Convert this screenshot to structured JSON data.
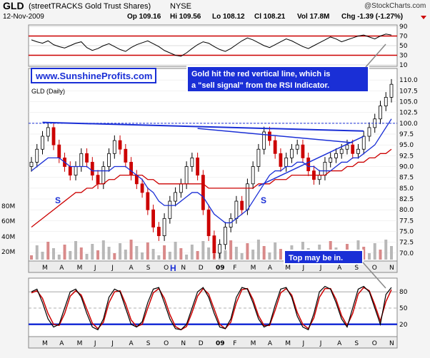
{
  "header": {
    "symbol": "GLD",
    "name": "(streetTRACKS Gold Trust Shares)",
    "exchange": "NYSE",
    "watermark": "@StockCharts.com",
    "date": "12-Nov-2009",
    "op": "Op 109.16",
    "hi": "Hi 109.56",
    "lo": "Lo 108.12",
    "cl": "Cl 108.21",
    "vol": "Vol 17.8M",
    "chg": "Chg -1.39 (-1.27%)"
  },
  "annotations": {
    "site": "www.SunshineProfits.com",
    "rsi_note_line1": "Gold hit the red vertical line, which is",
    "rsi_note_line2": "a \"sell signal\" from the RSI Indicator.",
    "top_note": "Top may be in.",
    "s_left": "S",
    "s_right": "S",
    "h_label": "H"
  },
  "colors": {
    "bg": "#f4f4f4",
    "panel": "#ffffff",
    "accent_blue": "#1a2fd6",
    "red": "#cc0000",
    "note_border": "#1a2fd6"
  },
  "chart_data": [
    {
      "type": "line",
      "panel": "RSI",
      "ylim": [
        10,
        90
      ],
      "yticks": [
        10,
        30,
        50,
        70,
        90
      ],
      "reference_lines": [
        70,
        30
      ],
      "values": [
        62,
        58,
        55,
        60,
        52,
        48,
        45,
        50,
        55,
        58,
        46,
        40,
        44,
        50,
        54,
        48,
        42,
        38,
        46,
        52,
        56,
        60,
        54,
        48,
        40,
        35,
        30,
        28,
        35,
        44,
        52,
        58,
        55,
        48,
        42,
        38,
        44,
        52,
        60,
        66,
        62,
        56,
        50,
        46,
        52,
        58,
        64,
        60,
        54,
        48,
        44,
        50,
        56,
        62,
        68,
        64,
        58,
        62,
        66,
        70,
        72,
        68,
        64,
        70,
        74,
        72
      ]
    },
    {
      "type": "candlestick",
      "panel": "GLD (Daily)",
      "title": "GLD (Daily)",
      "ylim": [
        68.5,
        112
      ],
      "yticks": [
        70.0,
        72.5,
        75.0,
        77.5,
        80.0,
        82.5,
        85.0,
        87.5,
        90.0,
        92.5,
        95.0,
        97.5,
        100.0,
        102.5,
        105.0,
        107.5,
        110.0
      ],
      "xticks": [
        "M",
        "A",
        "M",
        "J",
        "J",
        "A",
        "S",
        "O",
        "N",
        "D",
        "09",
        "F",
        "M",
        "A",
        "M",
        "J",
        "J",
        "A",
        "S",
        "O",
        "N"
      ],
      "close": [
        91,
        94,
        97,
        99,
        95,
        92,
        90,
        88,
        90,
        93,
        91,
        88,
        86,
        90,
        93,
        96,
        94,
        91,
        88,
        86,
        84,
        80,
        76,
        74,
        78,
        82,
        84,
        86,
        90,
        92,
        88,
        80,
        74,
        70,
        72,
        76,
        78,
        82,
        80,
        86,
        90,
        94,
        98,
        96,
        93,
        90,
        92,
        94,
        95,
        92,
        89,
        87,
        88,
        91,
        92,
        93,
        94,
        95,
        93,
        94,
        97,
        99,
        101,
        104,
        106,
        109
      ],
      "ma_blue": [
        89,
        90,
        91,
        92,
        92,
        92,
        91,
        90,
        90,
        90,
        90,
        89,
        89,
        89,
        89,
        90,
        90,
        90,
        89,
        88,
        87,
        85,
        84,
        82,
        81,
        81,
        81,
        82,
        83,
        84,
        84,
        83,
        81,
        79,
        78,
        77,
        77,
        78,
        79,
        80,
        82,
        84,
        86,
        88,
        89,
        89,
        90,
        90,
        91,
        91,
        90,
        90,
        89,
        89,
        89,
        90,
        91,
        91,
        92,
        92,
        93,
        94,
        95,
        97,
        99,
        101
      ],
      "ma_red": [
        76,
        77,
        78,
        79,
        80,
        81,
        82,
        83,
        84,
        84,
        85,
        85,
        86,
        86,
        87,
        87,
        88,
        88,
        88,
        88,
        88,
        87,
        87,
        86,
        86,
        86,
        86,
        86,
        86,
        86,
        86,
        86,
        85,
        85,
        85,
        85,
        85,
        85,
        85,
        85,
        85,
        86,
        86,
        86,
        87,
        87,
        87,
        88,
        88,
        88,
        88,
        88,
        88,
        88,
        89,
        89,
        89,
        90,
        90,
        91,
        91,
        92,
        92,
        93,
        93,
        94
      ],
      "reference_lines": [
        100.0
      ],
      "volume_ticks": [
        "20M",
        "40M",
        "60M",
        "80M"
      ]
    },
    {
      "type": "line",
      "panel": "Stochastic",
      "ylim": [
        0,
        100
      ],
      "yticks": [
        20,
        50,
        80
      ],
      "reference_lines": [
        80,
        50,
        20
      ],
      "k_values": [
        80,
        85,
        60,
        30,
        15,
        20,
        50,
        80,
        85,
        70,
        40,
        15,
        10,
        30,
        70,
        85,
        80,
        50,
        20,
        15,
        25,
        60,
        85,
        88,
        60,
        30,
        12,
        10,
        20,
        50,
        80,
        88,
        70,
        40,
        15,
        12,
        30,
        70,
        88,
        85,
        60,
        30,
        15,
        20,
        55,
        85,
        88,
        70,
        35,
        15,
        10,
        40,
        80,
        90,
        85,
        60,
        30,
        15,
        50,
        85,
        90,
        80,
        50,
        20,
        75,
        88
      ],
      "d_values": [
        78,
        82,
        68,
        40,
        20,
        18,
        40,
        72,
        82,
        74,
        48,
        22,
        12,
        24,
        60,
        80,
        82,
        58,
        28,
        16,
        20,
        50,
        78,
        86,
        68,
        38,
        16,
        10,
        16,
        42,
        72,
        86,
        76,
        48,
        20,
        12,
        24,
        60,
        84,
        86,
        66,
        36,
        18,
        18,
        46,
        78,
        86,
        74,
        42,
        20,
        12,
        32,
        70,
        86,
        86,
        66,
        36,
        18,
        40,
        76,
        88,
        82,
        56,
        26,
        62,
        84
      ]
    }
  ]
}
